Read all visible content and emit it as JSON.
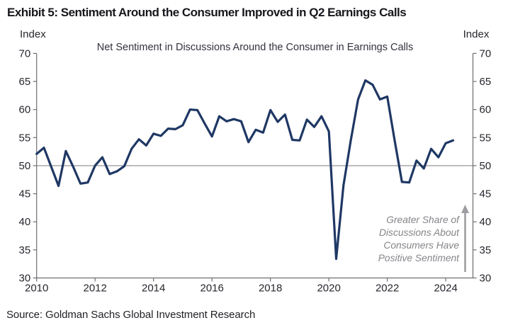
{
  "exhibit": {
    "title": "Exhibit 5: Sentiment Around the Consumer Improved in Q2 Earnings Calls",
    "source": "Source: Goldman Sachs Global Investment Research"
  },
  "chart_data": {
    "type": "line",
    "title": "Net Sentiment in Discussions Around the Consumer in Earnings Calls",
    "axis_unit_left": "Index",
    "axis_unit_right": "Index",
    "xlim": [
      2010,
      2024.93
    ],
    "ylim": [
      30,
      70
    ],
    "y_ticks": [
      30,
      35,
      40,
      45,
      50,
      55,
      60,
      65,
      70
    ],
    "x_ticks": [
      2010,
      2012,
      2014,
      2016,
      2018,
      2020,
      2022,
      2024
    ],
    "reference_line_y": 50,
    "grid": false,
    "legend_position": "none",
    "line_color": "#1f3864",
    "axis_color": "#6f6f74",
    "tick_label_color": "#26262e",
    "reference_line_color": "#8a8a8e",
    "series": [
      {
        "name": "Net Sentiment in Discussions Around the Consumer",
        "x": [
          2010.0,
          2010.25,
          2010.5,
          2010.75,
          2011.0,
          2011.25,
          2011.5,
          2011.75,
          2012.0,
          2012.25,
          2012.5,
          2012.75,
          2013.0,
          2013.25,
          2013.5,
          2013.75,
          2014.0,
          2014.25,
          2014.5,
          2014.75,
          2015.0,
          2015.25,
          2015.5,
          2015.75,
          2016.0,
          2016.25,
          2016.5,
          2016.75,
          2017.0,
          2017.25,
          2017.5,
          2017.75,
          2018.0,
          2018.25,
          2018.5,
          2018.75,
          2019.0,
          2019.25,
          2019.5,
          2019.75,
          2020.0,
          2020.25,
          2020.5,
          2020.75,
          2021.0,
          2021.25,
          2021.5,
          2021.75,
          2022.0,
          2022.25,
          2022.5,
          2022.75,
          2023.0,
          2023.25,
          2023.5,
          2023.75,
          2024.0,
          2024.25
        ],
        "y": [
          52.1,
          53.2,
          49.8,
          46.4,
          52.6,
          49.8,
          46.8,
          47.0,
          50.0,
          51.5,
          48.5,
          49.0,
          49.9,
          53.0,
          54.7,
          53.6,
          55.7,
          55.3,
          56.6,
          56.5,
          57.2,
          60.0,
          59.9,
          57.5,
          55.2,
          58.8,
          57.9,
          58.3,
          57.9,
          54.2,
          56.4,
          55.9,
          59.9,
          57.8,
          59.1,
          54.6,
          54.5,
          58.2,
          56.9,
          58.8,
          56.1,
          33.4,
          46.5,
          54.5,
          61.8,
          65.2,
          64.4,
          61.8,
          62.3,
          54.5,
          47.1,
          47.0,
          50.9,
          49.5,
          53.0,
          51.5,
          54.0,
          54.5
        ]
      }
    ],
    "annotation": {
      "lines": [
        "Greater Share of",
        "Discussions About",
        "Consumers Have",
        "Positive Sentiment"
      ],
      "arrow_direction": "up",
      "color": "#85858a",
      "arrow_color": "#9e9ea2"
    }
  }
}
